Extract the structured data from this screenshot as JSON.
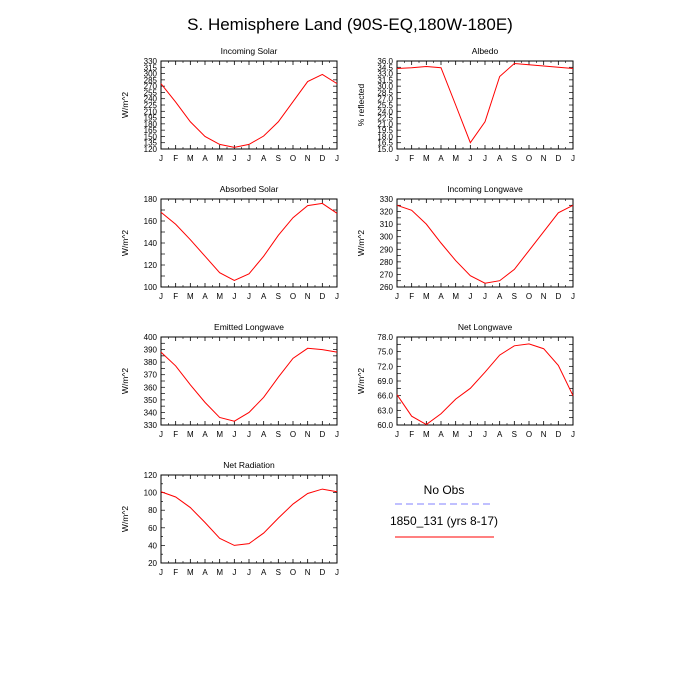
{
  "title": "S. Hemisphere Land (90S-EQ,180W-180E)",
  "legend": {
    "obs_label": "No Obs",
    "obs_color": "#8080ff",
    "model_label": "1850_131 (yrs 8-17)",
    "model_color": "#ff0000"
  },
  "chart_data": [
    {
      "type": "line",
      "title": "Incoming Solar",
      "ylabel": "W/m^2",
      "categories": [
        "J",
        "F",
        "M",
        "A",
        "M",
        "J",
        "J",
        "A",
        "S",
        "O",
        "N",
        "D",
        "J"
      ],
      "ylim": [
        120,
        330
      ],
      "yticks": [
        120,
        135,
        150,
        165,
        180,
        195,
        210,
        225,
        240,
        255,
        270,
        285,
        300,
        315,
        330
      ],
      "yticklabels": [
        "120",
        "135",
        "150",
        "165",
        "180",
        "195",
        "210",
        "225",
        "240",
        "255",
        "270",
        "285",
        "300",
        "315",
        "330"
      ],
      "grid": false,
      "series": [
        {
          "values": [
            276,
            232,
            185,
            150,
            131,
            124,
            131,
            151,
            185,
            233,
            281,
            298,
            276
          ]
        }
      ]
    },
    {
      "type": "line",
      "title": "Albedo",
      "ylabel": "% reflected",
      "categories": [
        "J",
        "F",
        "M",
        "A",
        "M",
        "J",
        "J",
        "A",
        "S",
        "O",
        "N",
        "D",
        "J"
      ],
      "ylim": [
        15,
        36
      ],
      "yticks": [
        15,
        16.5,
        18,
        19.5,
        21,
        22.5,
        24,
        25.5,
        27,
        28.5,
        30,
        31.5,
        33,
        34.5,
        36
      ],
      "yticklabels": [
        "15.0",
        "16.5",
        "18.0",
        "19.5",
        "21.0",
        "22.5",
        "24.0",
        "25.5",
        "27.0",
        "28.5",
        "30.0",
        "31.5",
        "33.0",
        "34.5",
        "36.0"
      ],
      "grid": false,
      "series": [
        {
          "values": [
            34.2,
            34.4,
            34.7,
            34.4,
            25.5,
            16.5,
            21.5,
            32.3,
            35.4,
            35.1,
            34.8,
            34.5,
            34.2
          ]
        }
      ]
    },
    {
      "type": "line",
      "title": "Absorbed Solar",
      "ylabel": "W/m^2",
      "categories": [
        "J",
        "F",
        "M",
        "A",
        "M",
        "J",
        "J",
        "A",
        "S",
        "O",
        "N",
        "D",
        "J"
      ],
      "ylim": [
        100,
        180
      ],
      "yticks": [
        100,
        110,
        120,
        130,
        140,
        150,
        160,
        170,
        180
      ],
      "yticklabels": [
        "100",
        "",
        "120",
        "",
        "140",
        "",
        "160",
        "",
        "180"
      ],
      "grid": false,
      "series": [
        {
          "values": [
            168,
            157,
            143,
            128,
            113,
            106,
            112,
            128,
            147,
            163,
            174,
            176,
            167
          ]
        }
      ]
    },
    {
      "type": "line",
      "title": "Incoming Longwave",
      "ylabel": "W/m^2",
      "categories": [
        "J",
        "F",
        "M",
        "A",
        "M",
        "J",
        "J",
        "A",
        "S",
        "O",
        "N",
        "D",
        "J"
      ],
      "ylim": [
        260,
        330
      ],
      "yticks": [
        260,
        265,
        270,
        275,
        280,
        285,
        290,
        295,
        300,
        305,
        310,
        315,
        320,
        325,
        330
      ],
      "yticklabels": [
        "260",
        "",
        "270",
        "",
        "280",
        "",
        "290",
        "",
        "300",
        "",
        "310",
        "",
        "320",
        "",
        "330"
      ],
      "grid": false,
      "series": [
        {
          "values": [
            325,
            321,
            310,
            295,
            281,
            269,
            263,
            265,
            274,
            289,
            304,
            319,
            325
          ]
        }
      ]
    },
    {
      "type": "line",
      "title": "Emitted Longwave",
      "ylabel": "W/m^2",
      "categories": [
        "J",
        "F",
        "M",
        "A",
        "M",
        "J",
        "J",
        "A",
        "S",
        "O",
        "N",
        "D",
        "J"
      ],
      "ylim": [
        330,
        400
      ],
      "yticks": [
        330,
        335,
        340,
        345,
        350,
        355,
        360,
        365,
        370,
        375,
        380,
        385,
        390,
        395,
        400
      ],
      "yticklabels": [
        "330",
        "",
        "340",
        "",
        "350",
        "",
        "360",
        "",
        "370",
        "",
        "380",
        "",
        "390",
        "",
        "400"
      ],
      "grid": false,
      "series": [
        {
          "values": [
            388,
            377,
            362,
            348,
            336,
            333,
            340,
            352,
            368,
            383,
            391,
            390,
            388
          ]
        }
      ]
    },
    {
      "type": "line",
      "title": "Net Longwave",
      "ylabel": "W/m^2",
      "categories": [
        "J",
        "F",
        "M",
        "A",
        "M",
        "J",
        "J",
        "A",
        "S",
        "O",
        "N",
        "D",
        "J"
      ],
      "ylim": [
        60,
        78
      ],
      "yticks": [
        60,
        61.5,
        63,
        64.5,
        66,
        67.5,
        69,
        70.5,
        72,
        73.5,
        75,
        76.5,
        78
      ],
      "yticklabels": [
        "60.0",
        "",
        "63.0",
        "",
        "66.0",
        "",
        "69.0",
        "",
        "72.0",
        "",
        "75.0",
        "",
        "78.0"
      ],
      "grid": false,
      "series": [
        {
          "values": [
            66.2,
            61.8,
            60.1,
            62.3,
            65.3,
            67.5,
            70.8,
            74.3,
            76.2,
            76.6,
            75.6,
            72.2,
            66.0
          ]
        }
      ]
    },
    {
      "type": "line",
      "title": "Net Radiation",
      "ylabel": "W/m^2",
      "categories": [
        "J",
        "F",
        "M",
        "A",
        "M",
        "J",
        "J",
        "A",
        "S",
        "O",
        "N",
        "D",
        "J"
      ],
      "ylim": [
        20,
        120
      ],
      "yticks": [
        20,
        30,
        40,
        50,
        60,
        70,
        80,
        90,
        100,
        110,
        120
      ],
      "yticklabels": [
        "20",
        "40",
        "60",
        "80",
        "100",
        "120"
      ],
      "ytickmajor": [
        20,
        40,
        60,
        80,
        100,
        120
      ],
      "grid": false,
      "series": [
        {
          "values": [
            101,
            95,
            83,
            66,
            48,
            40,
            42,
            54,
            71,
            87,
            99,
            104,
            101
          ]
        }
      ]
    }
  ]
}
